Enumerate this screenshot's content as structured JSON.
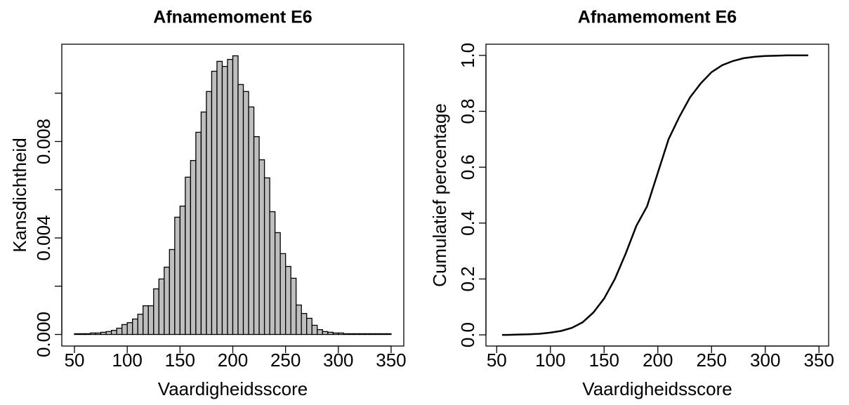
{
  "chart_data": [
    {
      "type": "histogram",
      "title": "Afnamemoment E6",
      "xlabel": "Vaardigheidsscore",
      "ylabel": "Kansdichtheid",
      "bins": [
        50,
        55,
        60,
        65,
        70,
        75,
        80,
        85,
        90,
        95,
        100,
        105,
        110,
        115,
        120,
        125,
        130,
        135,
        140,
        145,
        150,
        155,
        160,
        165,
        170,
        175,
        180,
        185,
        190,
        195,
        200,
        205,
        210,
        215,
        220,
        225,
        230,
        235,
        240,
        245,
        250,
        255,
        260,
        265,
        270,
        275,
        280,
        285,
        290,
        295,
        300,
        305,
        310,
        315,
        320,
        325,
        330,
        335,
        340,
        345,
        350
      ],
      "values": [
        3e-05,
        3e-05,
        3e-05,
        6e-05,
        6e-05,
        9e-05,
        0.00012,
        0.00017,
        0.00026,
        0.00041,
        0.00049,
        0.00064,
        0.00084,
        0.00119,
        0.00119,
        0.00189,
        0.0023,
        0.00279,
        0.00352,
        0.00486,
        0.00532,
        0.00652,
        0.00721,
        0.00838,
        0.00922,
        0.01007,
        0.01091,
        0.01132,
        0.01111,
        0.0114,
        0.01155,
        0.01036,
        0.01007,
        0.00943,
        0.0082,
        0.00724,
        0.00649,
        0.00509,
        0.00422,
        0.00335,
        0.00282,
        0.00233,
        0.00122,
        0.00087,
        0.00067,
        0.00038,
        0.0002,
        0.00012,
        9e-05,
        6e-05,
        6e-05,
        3e-05,
        3e-05,
        3e-05,
        3e-05,
        3e-05,
        3e-05,
        3e-05,
        3e-05,
        3e-05
      ],
      "color": "#bebebe",
      "xlim": [
        38,
        362
      ],
      "ylim": [
        -0.00048,
        0.01203
      ],
      "xticks": [
        50,
        100,
        150,
        200,
        250,
        300,
        350
      ],
      "yticks": [
        {
          "value": 0,
          "label": "0.000"
        },
        0.004,
        0.008
      ],
      "yticks_minor": [
        0.002,
        0.006,
        0.01
      ]
    },
    {
      "type": "line",
      "title": "Afnamemoment E6",
      "xlabel": "Vaardigheidsscore",
      "ylabel": "Cumulatief percentage",
      "x": [
        55,
        60,
        70,
        80,
        90,
        100,
        110,
        120,
        130,
        140,
        150,
        160,
        170,
        180,
        190,
        200,
        210,
        220,
        230,
        240,
        250,
        260,
        270,
        280,
        290,
        300,
        310,
        320,
        340
      ],
      "values": [
        0,
        0,
        0.001,
        0.002,
        0.004,
        0.008,
        0.014,
        0.025,
        0.045,
        0.08,
        0.13,
        0.2,
        0.29,
        0.39,
        0.46,
        0.58,
        0.7,
        0.78,
        0.85,
        0.9,
        0.94,
        0.965,
        0.98,
        0.99,
        0.995,
        0.998,
        0.999,
        1,
        1
      ],
      "color": "#000000",
      "xlim": [
        40,
        359
      ],
      "ylim": [
        -0.04,
        1.04
      ],
      "xticks": [
        50,
        100,
        150,
        200,
        250,
        300,
        350
      ],
      "yticks": [
        {
          "value": 0,
          "label": "0.0"
        },
        0.2,
        0.4,
        0.6,
        0.8,
        {
          "value": 1,
          "label": "1.0"
        }
      ]
    }
  ]
}
